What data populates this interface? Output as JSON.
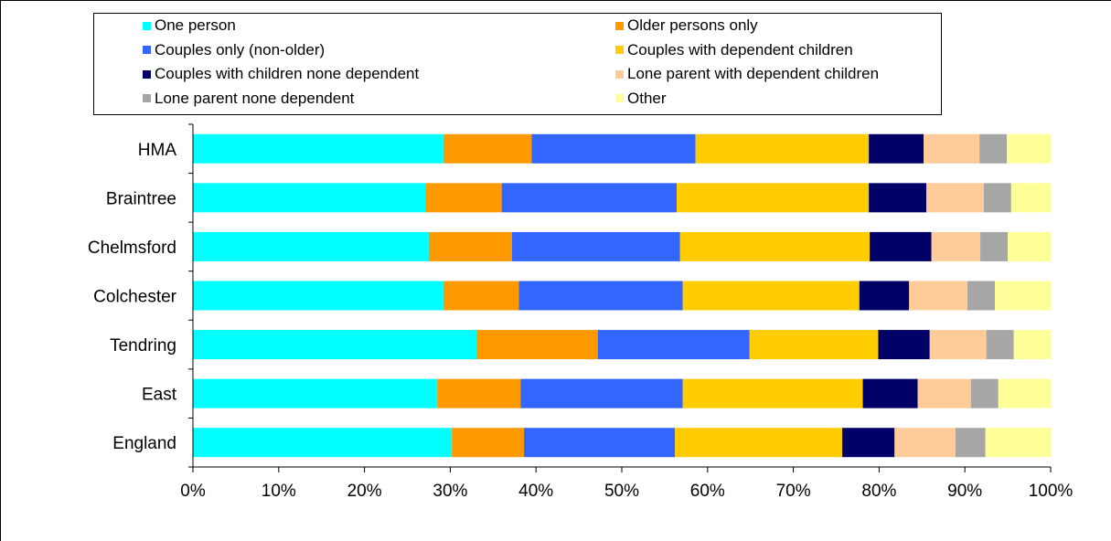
{
  "chart_data": {
    "type": "bar",
    "orientation": "horizontal",
    "stacked": "percent",
    "title": "",
    "xlabel": "",
    "ylabel": "",
    "xlim": [
      0,
      100
    ],
    "x_ticks": [
      "0%",
      "10%",
      "20%",
      "30%",
      "40%",
      "50%",
      "60%",
      "70%",
      "80%",
      "90%",
      "100%"
    ],
    "grid": false,
    "legend_position": "top",
    "categories": [
      "HMA",
      "Braintree",
      "Chelmsford",
      "Colchester",
      "Tendring",
      "East",
      "England"
    ],
    "series": [
      {
        "name": "One person",
        "color": "#00FFFF",
        "values": [
          29.2,
          27.1,
          27.5,
          29.2,
          33.1,
          28.5,
          30.2
        ]
      },
      {
        "name": "Older persons only",
        "color": "#FF9900",
        "values": [
          10.3,
          8.9,
          9.7,
          8.8,
          14.1,
          9.7,
          8.4
        ]
      },
      {
        "name": "Couples only (non-older)",
        "color": "#3366FF",
        "values": [
          19.1,
          20.4,
          19.6,
          19.1,
          17.7,
          18.9,
          17.6
        ]
      },
      {
        "name": "Couples with dependent children",
        "color": "#FFCC00",
        "values": [
          20.2,
          22.4,
          22.1,
          20.6,
          15.0,
          21.0,
          19.5
        ]
      },
      {
        "name": "Couples with children none dependent",
        "color": "#000066",
        "values": [
          6.4,
          6.7,
          7.2,
          5.8,
          6.0,
          6.4,
          6.1
        ]
      },
      {
        "name": "Lone parent with dependent children",
        "color": "#FFCC99",
        "values": [
          6.5,
          6.7,
          5.7,
          6.8,
          6.6,
          6.2,
          7.1
        ]
      },
      {
        "name": "Lone parent none dependent",
        "color": "#A6A6A6",
        "values": [
          3.2,
          3.2,
          3.2,
          3.2,
          3.2,
          3.2,
          3.5
        ]
      },
      {
        "name": "Other",
        "color": "#FFFF99",
        "values": [
          5.1,
          4.6,
          5.0,
          6.5,
          4.3,
          6.1,
          7.6
        ]
      }
    ]
  }
}
